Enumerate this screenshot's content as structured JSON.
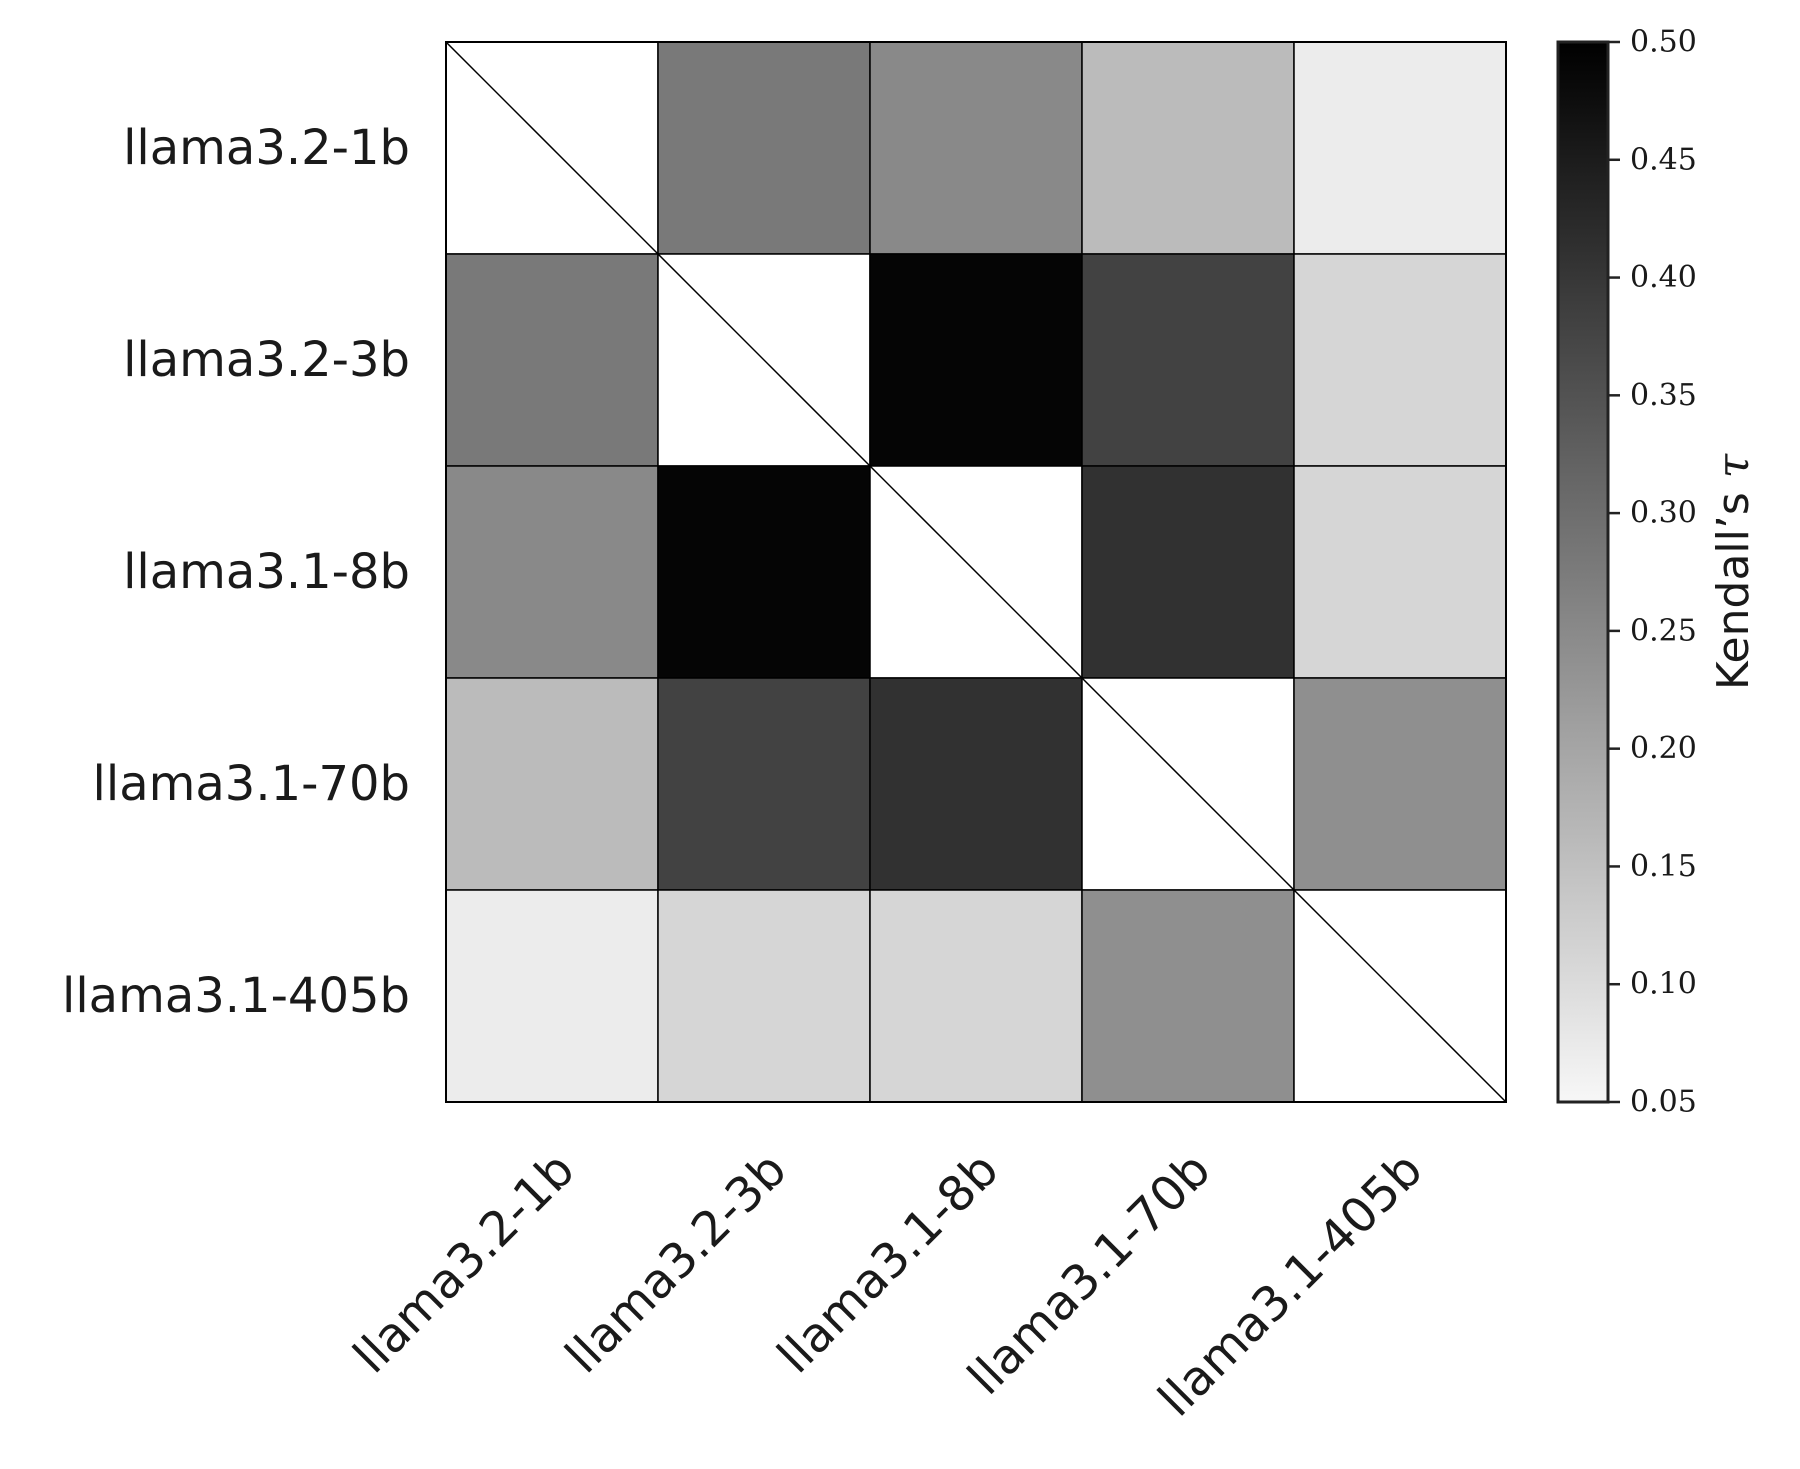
{
  "chart_data": {
    "type": "heatmap",
    "title": "",
    "row_labels": [
      "llama3.2-1b",
      "llama3.2-3b",
      "llama3.1-8b",
      "llama3.1-70b",
      "llama3.1-405b"
    ],
    "col_labels": [
      "llama3.2-1b",
      "llama3.2-3b",
      "llama3.1-8b",
      "llama3.1-70b",
      "llama3.1-405b"
    ],
    "values": [
      [
        null,
        0.28,
        0.25,
        0.16,
        0.07
      ],
      [
        0.28,
        null,
        0.49,
        0.38,
        0.11
      ],
      [
        0.25,
        0.49,
        null,
        0.41,
        0.11
      ],
      [
        0.16,
        0.38,
        0.41,
        null,
        0.24
      ],
      [
        0.07,
        0.11,
        0.11,
        0.24,
        null
      ]
    ],
    "diagonal": "masked",
    "colorbar": {
      "label_text": "Kendall’s ",
      "label_symbol": "τ",
      "range": [
        0.05,
        0.5
      ],
      "ticks": [
        "0.05",
        "0.10",
        "0.15",
        "0.20",
        "0.25",
        "0.30",
        "0.35",
        "0.40",
        "0.45",
        "0.50"
      ],
      "colormap": "Greys",
      "color_low": "#f7f7f7",
      "color_high": "#000000"
    },
    "xtick_rotation": -45,
    "grid": false
  }
}
